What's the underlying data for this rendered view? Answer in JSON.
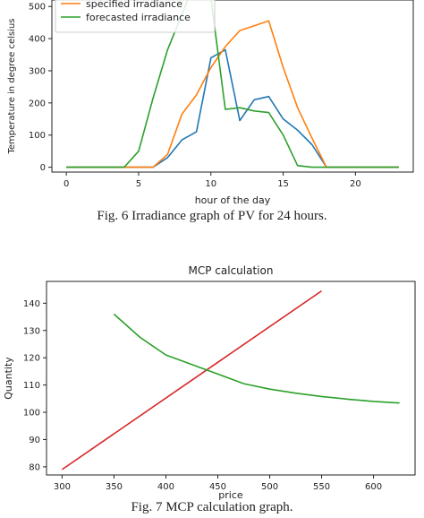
{
  "chart_data": [
    {
      "type": "line",
      "title": "",
      "xlabel": "hour of the day",
      "ylabel": "Temperature in degree celsius",
      "xlim": [
        -1,
        24
      ],
      "ylim": [
        -15,
        520
      ],
      "xticks": [
        "0",
        "5",
        "10",
        "15",
        "20"
      ],
      "yticks": [
        "0",
        "100",
        "200",
        "300",
        "400",
        "500"
      ],
      "legend": "upper-left",
      "series": [
        {
          "name": "",
          "color": "#1f77b4",
          "x": [
            0,
            1,
            2,
            3,
            4,
            5,
            6,
            7,
            8,
            9,
            10,
            11,
            12,
            13,
            14,
            15,
            16,
            17,
            18,
            19,
            20,
            21,
            22,
            23
          ],
          "y": [
            0,
            0,
            0,
            0,
            0,
            0,
            0,
            30,
            85,
            110,
            340,
            365,
            145,
            210,
            220,
            150,
            115,
            70,
            0,
            0,
            0,
            0,
            0,
            0
          ]
        },
        {
          "name": "specified irradiance",
          "color": "#ff7f0e",
          "x": [
            0,
            1,
            2,
            3,
            4,
            5,
            6,
            7,
            8,
            9,
            10,
            11,
            12,
            13,
            14,
            15,
            16,
            17,
            18,
            19,
            20,
            21,
            22,
            23
          ],
          "y": [
            0,
            0,
            0,
            0,
            0,
            0,
            0,
            40,
            165,
            225,
            310,
            375,
            425,
            440,
            455,
            310,
            185,
            90,
            0,
            0,
            0,
            0,
            0,
            0
          ]
        },
        {
          "name": "forecasted irradiance",
          "color": "#2ca02c",
          "x": [
            0,
            1,
            2,
            3,
            4,
            5,
            6,
            7,
            8,
            9,
            10,
            11,
            12,
            13,
            14,
            15,
            16,
            17,
            18,
            19,
            20,
            21,
            22,
            23
          ],
          "y": [
            0,
            0,
            0,
            0,
            0,
            50,
            215,
            365,
            475,
            590,
            525,
            180,
            185,
            175,
            170,
            100,
            5,
            0,
            0,
            0,
            0,
            0,
            0,
            0
          ]
        }
      ]
    },
    {
      "type": "line",
      "title": "MCP calculation",
      "xlabel": "price",
      "ylabel": "Quantity",
      "xlim": [
        285,
        640
      ],
      "ylim": [
        77,
        148
      ],
      "xticks": [
        "300",
        "350",
        "400",
        "450",
        "500",
        "550",
        "600"
      ],
      "yticks": [
        "80",
        "90",
        "100",
        "110",
        "120",
        "130",
        "140"
      ],
      "series": [
        {
          "name": "",
          "color": "#d62728",
          "x": [
            300,
            550
          ],
          "y": [
            79,
            144.5
          ]
        },
        {
          "name": "",
          "color": "#2ca02c",
          "x": [
            350,
            375,
            400,
            425,
            450,
            475,
            500,
            525,
            550,
            575,
            600,
            625
          ],
          "y": [
            136,
            127.5,
            121,
            117.5,
            114,
            110.5,
            108.5,
            107,
            105.8,
            104.8,
            104,
            103.4
          ]
        }
      ]
    }
  ],
  "captions": {
    "fig6": "Fig. 6 Irradiance graph of PV for 24 hours.",
    "fig7": "Fig. 7 MCP calculation graph."
  }
}
